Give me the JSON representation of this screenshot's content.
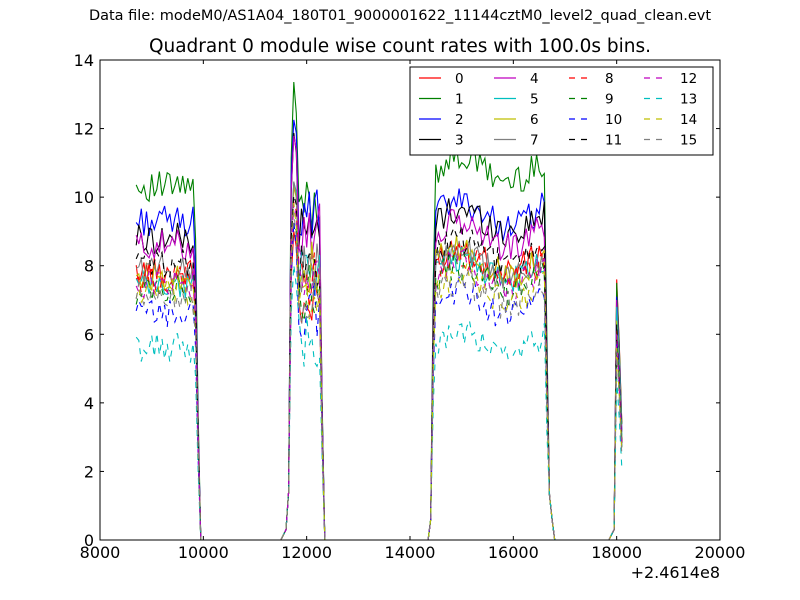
{
  "header": {
    "file_title": "Data file: modeM0/AS1A04_180T01_9000001622_11144cztM0_level2_quad_clean.evt",
    "main_title": "Quadrant 0 module wise count rates with 100.0s bins."
  },
  "chart_data": {
    "type": "line",
    "title": "Quadrant 0 module wise count rates with 100.0s bins.",
    "xlabel": "",
    "ylabel": "",
    "x_offset_label": "+2.4614e8",
    "xlim": [
      8000,
      20000
    ],
    "ylim": [
      0,
      14
    ],
    "x_ticks": [
      8000,
      10000,
      12000,
      14000,
      16000,
      18000,
      20000
    ],
    "y_ticks": [
      0,
      2,
      4,
      6,
      8,
      10,
      12,
      14
    ],
    "grid": false,
    "legend_position": "top-right",
    "legend_columns": 4,
    "segments": [
      {
        "start": 8700,
        "end": 9800
      },
      {
        "start": 11700,
        "end": 12200
      },
      {
        "start": 14500,
        "end": 16600
      },
      {
        "start": 18000,
        "end": 18100
      }
    ],
    "series": [
      {
        "name": "0",
        "color": "#ff0000",
        "dash": "solid",
        "levels": [
          7.8,
          9.0,
          8.2,
          7.6
        ]
      },
      {
        "name": "1",
        "color": "#008000",
        "dash": "solid",
        "levels": [
          10.3,
          13.1,
          10.8,
          7.5
        ]
      },
      {
        "name": "2",
        "color": "#0000ff",
        "dash": "solid",
        "levels": [
          9.3,
          12.5,
          9.5,
          7.1
        ]
      },
      {
        "name": "3",
        "color": "#000000",
        "dash": "solid",
        "levels": [
          8.8,
          11.9,
          9.3,
          6.5
        ]
      },
      {
        "name": "4",
        "color": "#bf00bf",
        "dash": "solid",
        "levels": [
          8.6,
          12.0,
          8.9,
          7.0
        ]
      },
      {
        "name": "5",
        "color": "#00bfbf",
        "dash": "solid",
        "levels": [
          7.4,
          10.7,
          7.9,
          6.8
        ]
      },
      {
        "name": "6",
        "color": "#bfbf00",
        "dash": "solid",
        "levels": [
          7.7,
          10.5,
          8.1,
          6.4
        ]
      },
      {
        "name": "7",
        "color": "#808080",
        "dash": "solid",
        "levels": [
          7.9,
          10.6,
          8.0,
          6.2
        ]
      },
      {
        "name": "8",
        "color": "#ff0000",
        "dash": "dashed",
        "levels": [
          7.6,
          10.1,
          7.9,
          6.1
        ]
      },
      {
        "name": "9",
        "color": "#008000",
        "dash": "dashed",
        "levels": [
          7.3,
          9.5,
          7.6,
          6.0
        ]
      },
      {
        "name": "10",
        "color": "#0000ff",
        "dash": "dashed",
        "levels": [
          6.6,
          9.0,
          6.9,
          5.8
        ]
      },
      {
        "name": "11",
        "color": "#000000",
        "dash": "dashed",
        "levels": [
          8.1,
          10.3,
          8.4,
          6.3
        ]
      },
      {
        "name": "12",
        "color": "#bf00bf",
        "dash": "dashed",
        "levels": [
          7.5,
          9.9,
          7.7,
          6.0
        ]
      },
      {
        "name": "13",
        "color": "#00bfbf",
        "dash": "dashed",
        "levels": [
          5.6,
          7.8,
          5.7,
          4.7
        ]
      },
      {
        "name": "14",
        "color": "#bfbf00",
        "dash": "dashed",
        "levels": [
          7.2,
          9.6,
          7.3,
          5.6
        ]
      },
      {
        "name": "15",
        "color": "#808080",
        "dash": "dashed",
        "levels": [
          7.1,
          9.3,
          7.2,
          5.5
        ]
      }
    ]
  }
}
